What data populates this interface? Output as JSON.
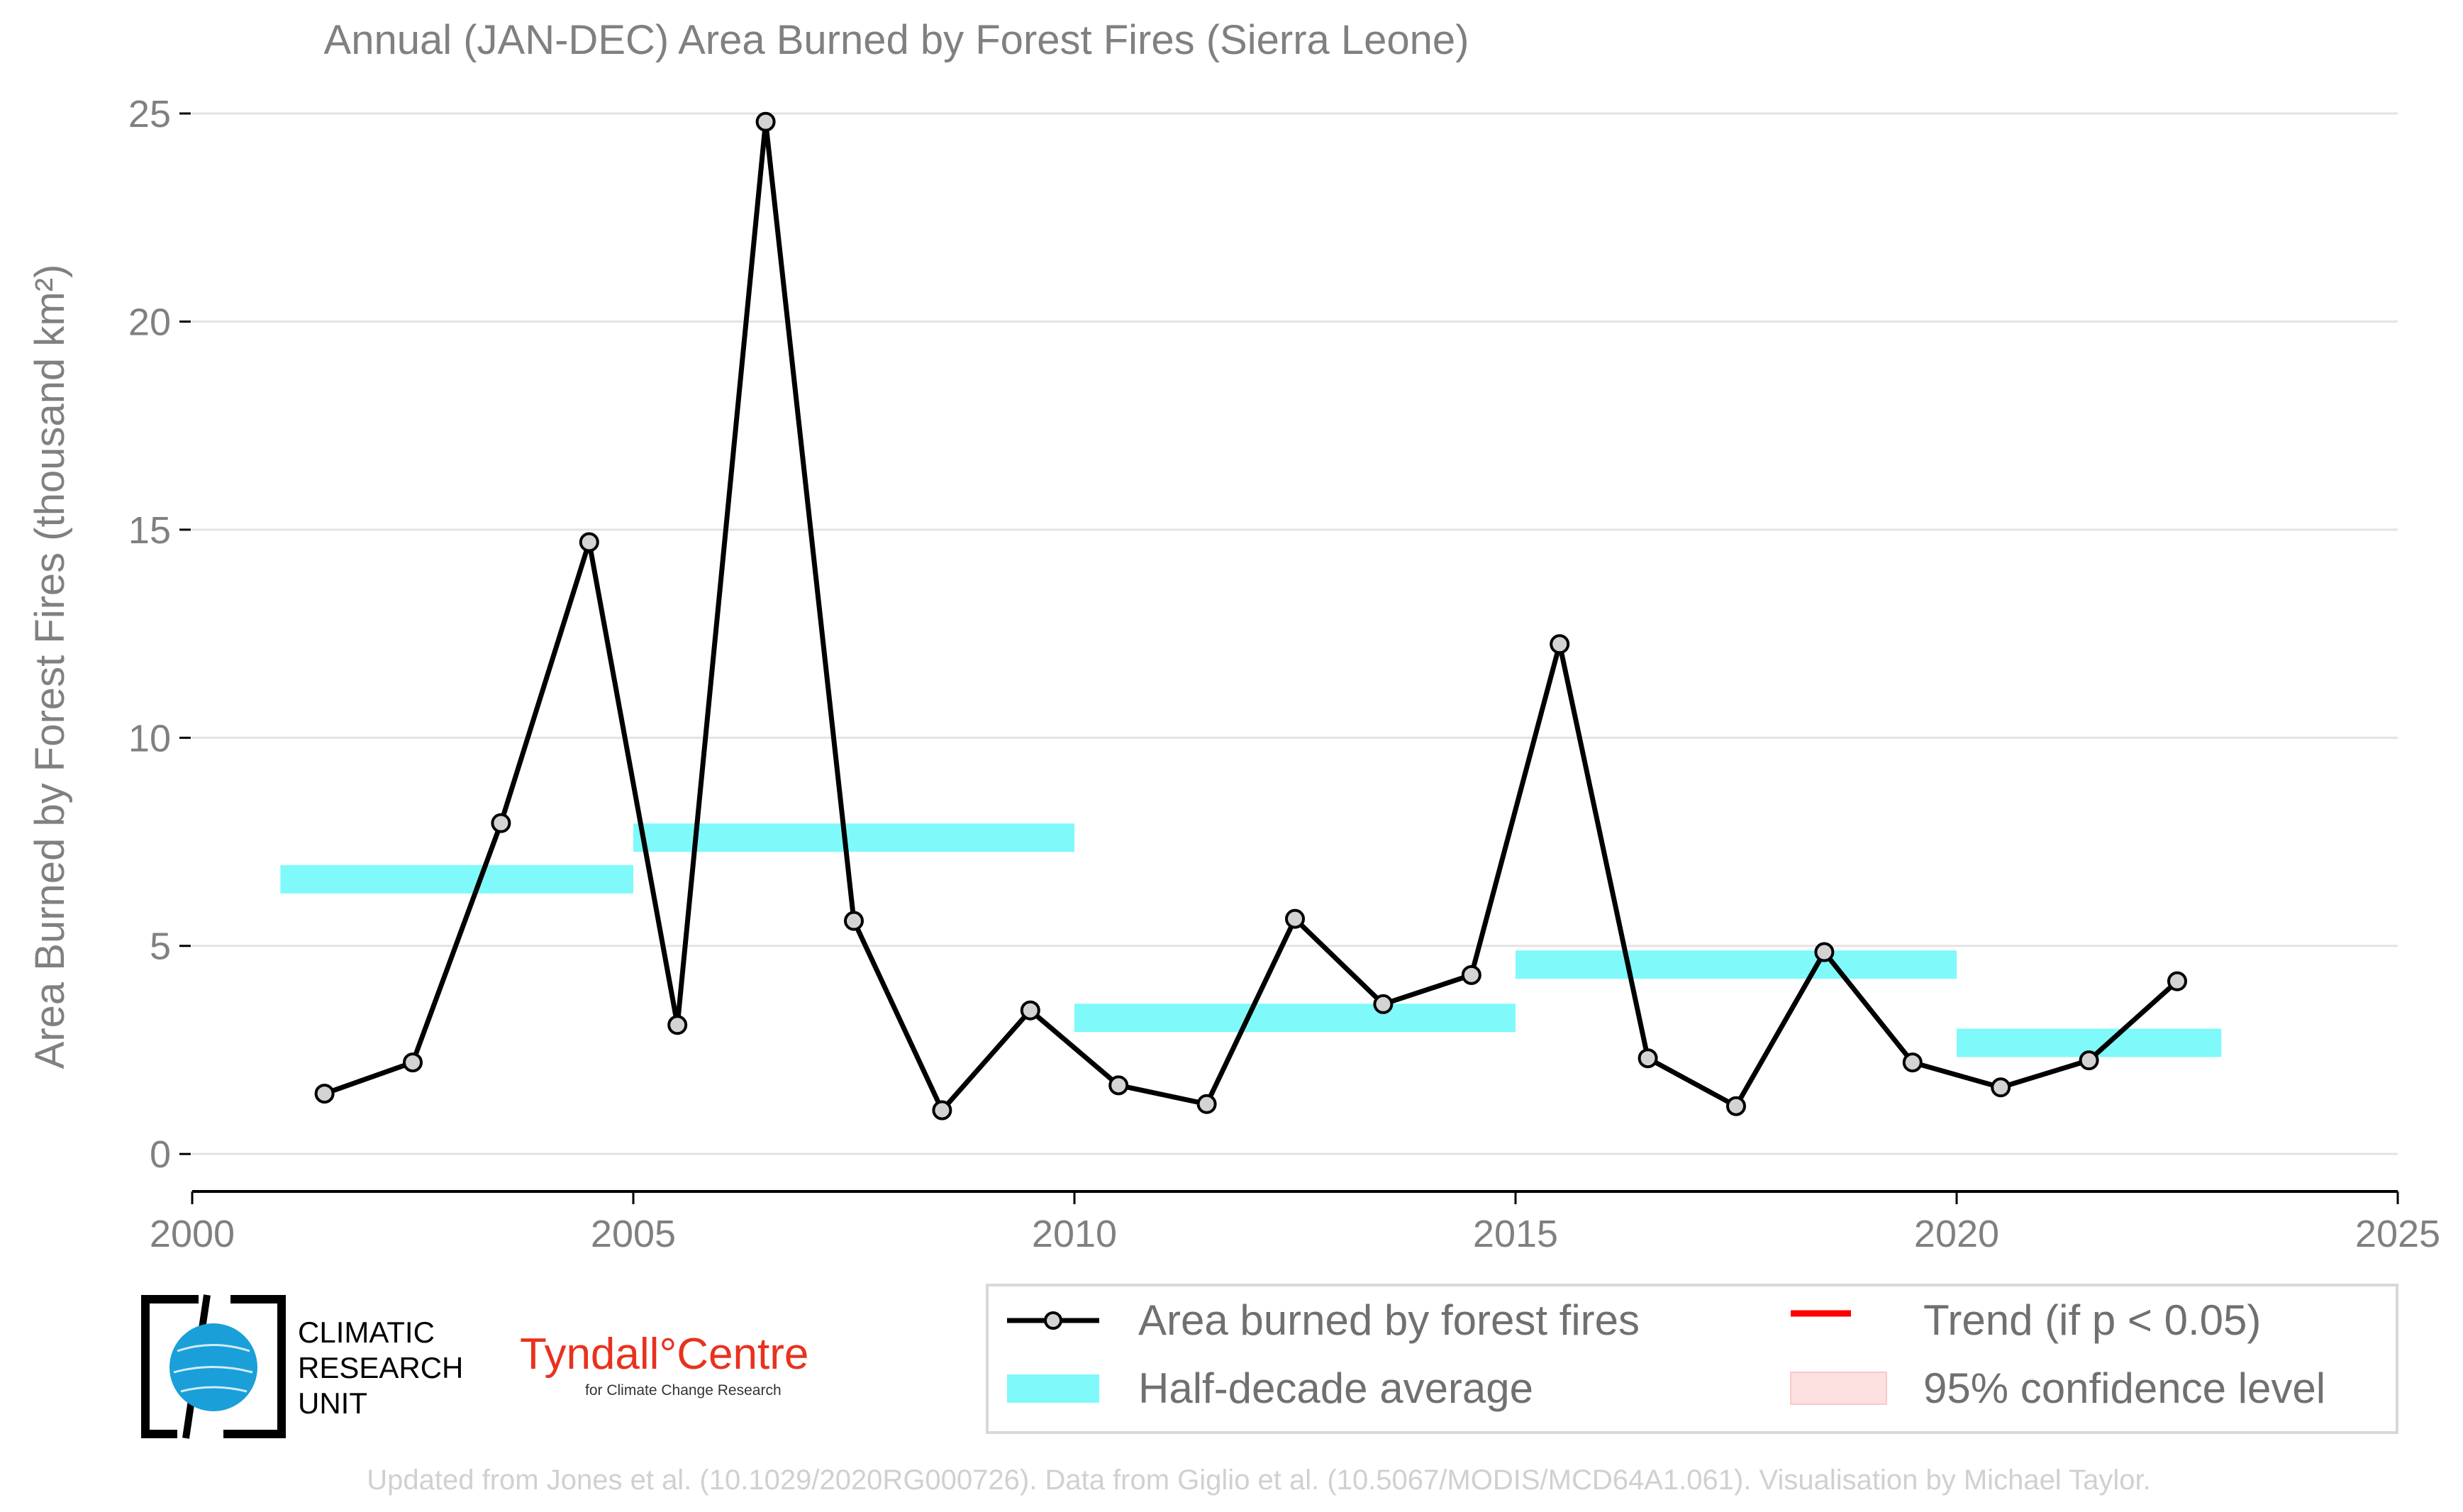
{
  "chart_data": {
    "type": "line",
    "title": "Annual (JAN-DEC) Area Burned by Forest Fires (Sierra Leone)",
    "ylabel": "Area Burned by Forest Fires (thousand km²)",
    "xlabel": "",
    "xlim": [
      2000,
      2025
    ],
    "ylim": [
      -0.9,
      25
    ],
    "xticks": [
      2000,
      2005,
      2010,
      2015,
      2020,
      2025
    ],
    "yticks": [
      0,
      5,
      10,
      15,
      20,
      25
    ],
    "grid": "horizontal",
    "legend_position": "bottom-right",
    "series": [
      {
        "name": "Area burned by forest fires",
        "color": "#000000",
        "marker": "circle",
        "x": [
          2001.5,
          2002.5,
          2003.5,
          2004.5,
          2005.5,
          2006.5,
          2007.5,
          2008.5,
          2009.5,
          2010.5,
          2011.5,
          2012.5,
          2013.5,
          2014.5,
          2015.5,
          2016.5,
          2017.5,
          2018.5,
          2019.5,
          2020.5,
          2021.5,
          2022.5
        ],
        "values": [
          1.45,
          2.2,
          7.95,
          14.7,
          3.1,
          24.8,
          5.6,
          1.05,
          3.45,
          1.65,
          1.2,
          5.65,
          3.6,
          4.3,
          12.25,
          2.3,
          1.15,
          4.85,
          2.2,
          1.6,
          2.25,
          4.15
        ]
      }
    ],
    "half_decade_average": {
      "name": "Half-decade average",
      "color": "#7ff9fa",
      "segments": [
        {
          "x0": 2001,
          "x1": 2005,
          "value": 6.6
        },
        {
          "x0": 2005,
          "x1": 2010,
          "value": 7.6
        },
        {
          "x0": 2010,
          "x1": 2015,
          "value": 3.27
        },
        {
          "x0": 2015,
          "x1": 2020,
          "value": 4.55
        },
        {
          "x0": 2020,
          "x1": 2023,
          "value": 2.67
        }
      ]
    },
    "legend": [
      {
        "label": "Area burned by forest fires",
        "kind": "line-marker",
        "color": "#000000"
      },
      {
        "label": "Trend (if p < 0.05)",
        "kind": "line",
        "color": "#ff0000"
      },
      {
        "label": "Half-decade average",
        "kind": "band",
        "color": "#7ff9fa"
      },
      {
        "label": "95% confidence level",
        "kind": "area",
        "color": "#fde0e0"
      }
    ]
  },
  "logos": {
    "cru_line1": "CLIMATIC",
    "cru_line2": "RESEARCH",
    "cru_line3": "UNIT",
    "tyndall_main": "Tyndall°Centre",
    "tyndall_sub": "for Climate Change Research"
  },
  "credit": "Updated from Jones et al. (10.1029/2020RG000726). Data from Giglio et al. (10.5067/MODIS/MCD64A1.061). Visualisation by Michael Taylor."
}
